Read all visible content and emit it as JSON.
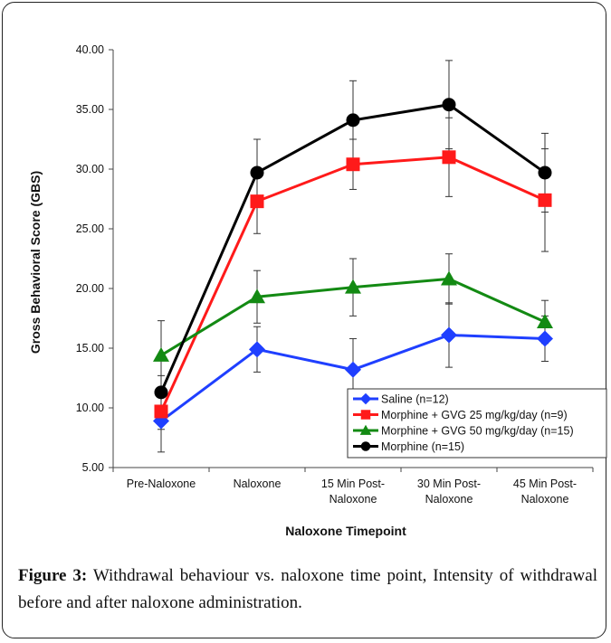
{
  "chart_data": {
    "type": "line",
    "categories": [
      "Pre-Naloxone",
      "Naloxone",
      "15 Min Post-Naloxone",
      "30 Min Post-Naloxone",
      "45 Min Post-Naloxone"
    ],
    "category_lines": [
      [
        "Pre-Naloxone"
      ],
      [
        "Naloxone"
      ],
      [
        "15 Min Post-",
        "Naloxone"
      ],
      [
        "30 Min Post-",
        "Naloxone"
      ],
      [
        "45 Min Post-",
        "Naloxone"
      ]
    ],
    "xlabel": "Naloxone Timepoint",
    "ylabel": "Gross Behavioral Score (GBS)",
    "ylim": [
      5,
      40
    ],
    "yticks": [
      "5.00",
      "10.00",
      "15.00",
      "20.00",
      "25.00",
      "30.00",
      "35.00",
      "40.00"
    ],
    "grid": false,
    "legend_position": "bottom-right",
    "series": [
      {
        "name": "Saline (n=12)",
        "color": "#1f3fff",
        "marker": "diamond",
        "values": [
          8.9,
          14.9,
          13.2,
          16.1,
          15.8
        ],
        "errors": [
          2.6,
          1.9,
          2.6,
          2.7,
          1.9
        ]
      },
      {
        "name": "Morphine + GVG 25 mg/kg/day (n=9)",
        "color": "#ff1a1a",
        "marker": "square",
        "values": [
          9.7,
          27.3,
          30.4,
          31.0,
          27.4
        ],
        "errors": [
          1.5,
          2.7,
          2.1,
          3.3,
          4.3
        ]
      },
      {
        "name": "Morphine + GVG 50 mg/kg/day (n=15)",
        "color": "#138a13",
        "marker": "triangle",
        "values": [
          14.4,
          19.3,
          20.1,
          20.8,
          17.2
        ],
        "errors": [
          2.9,
          2.2,
          2.4,
          2.1,
          1.8
        ]
      },
      {
        "name": "Morphine (n=15)",
        "color": "#000000",
        "marker": "circle",
        "values": [
          11.3,
          29.7,
          34.1,
          35.4,
          29.7
        ],
        "errors": [
          1.4,
          2.8,
          3.3,
          3.7,
          3.3
        ]
      }
    ]
  },
  "caption": {
    "label": "Figure 3:",
    "text": " Withdrawal behaviour vs. naloxone time point, Intensity of withdrawal before and after naloxone administration."
  }
}
